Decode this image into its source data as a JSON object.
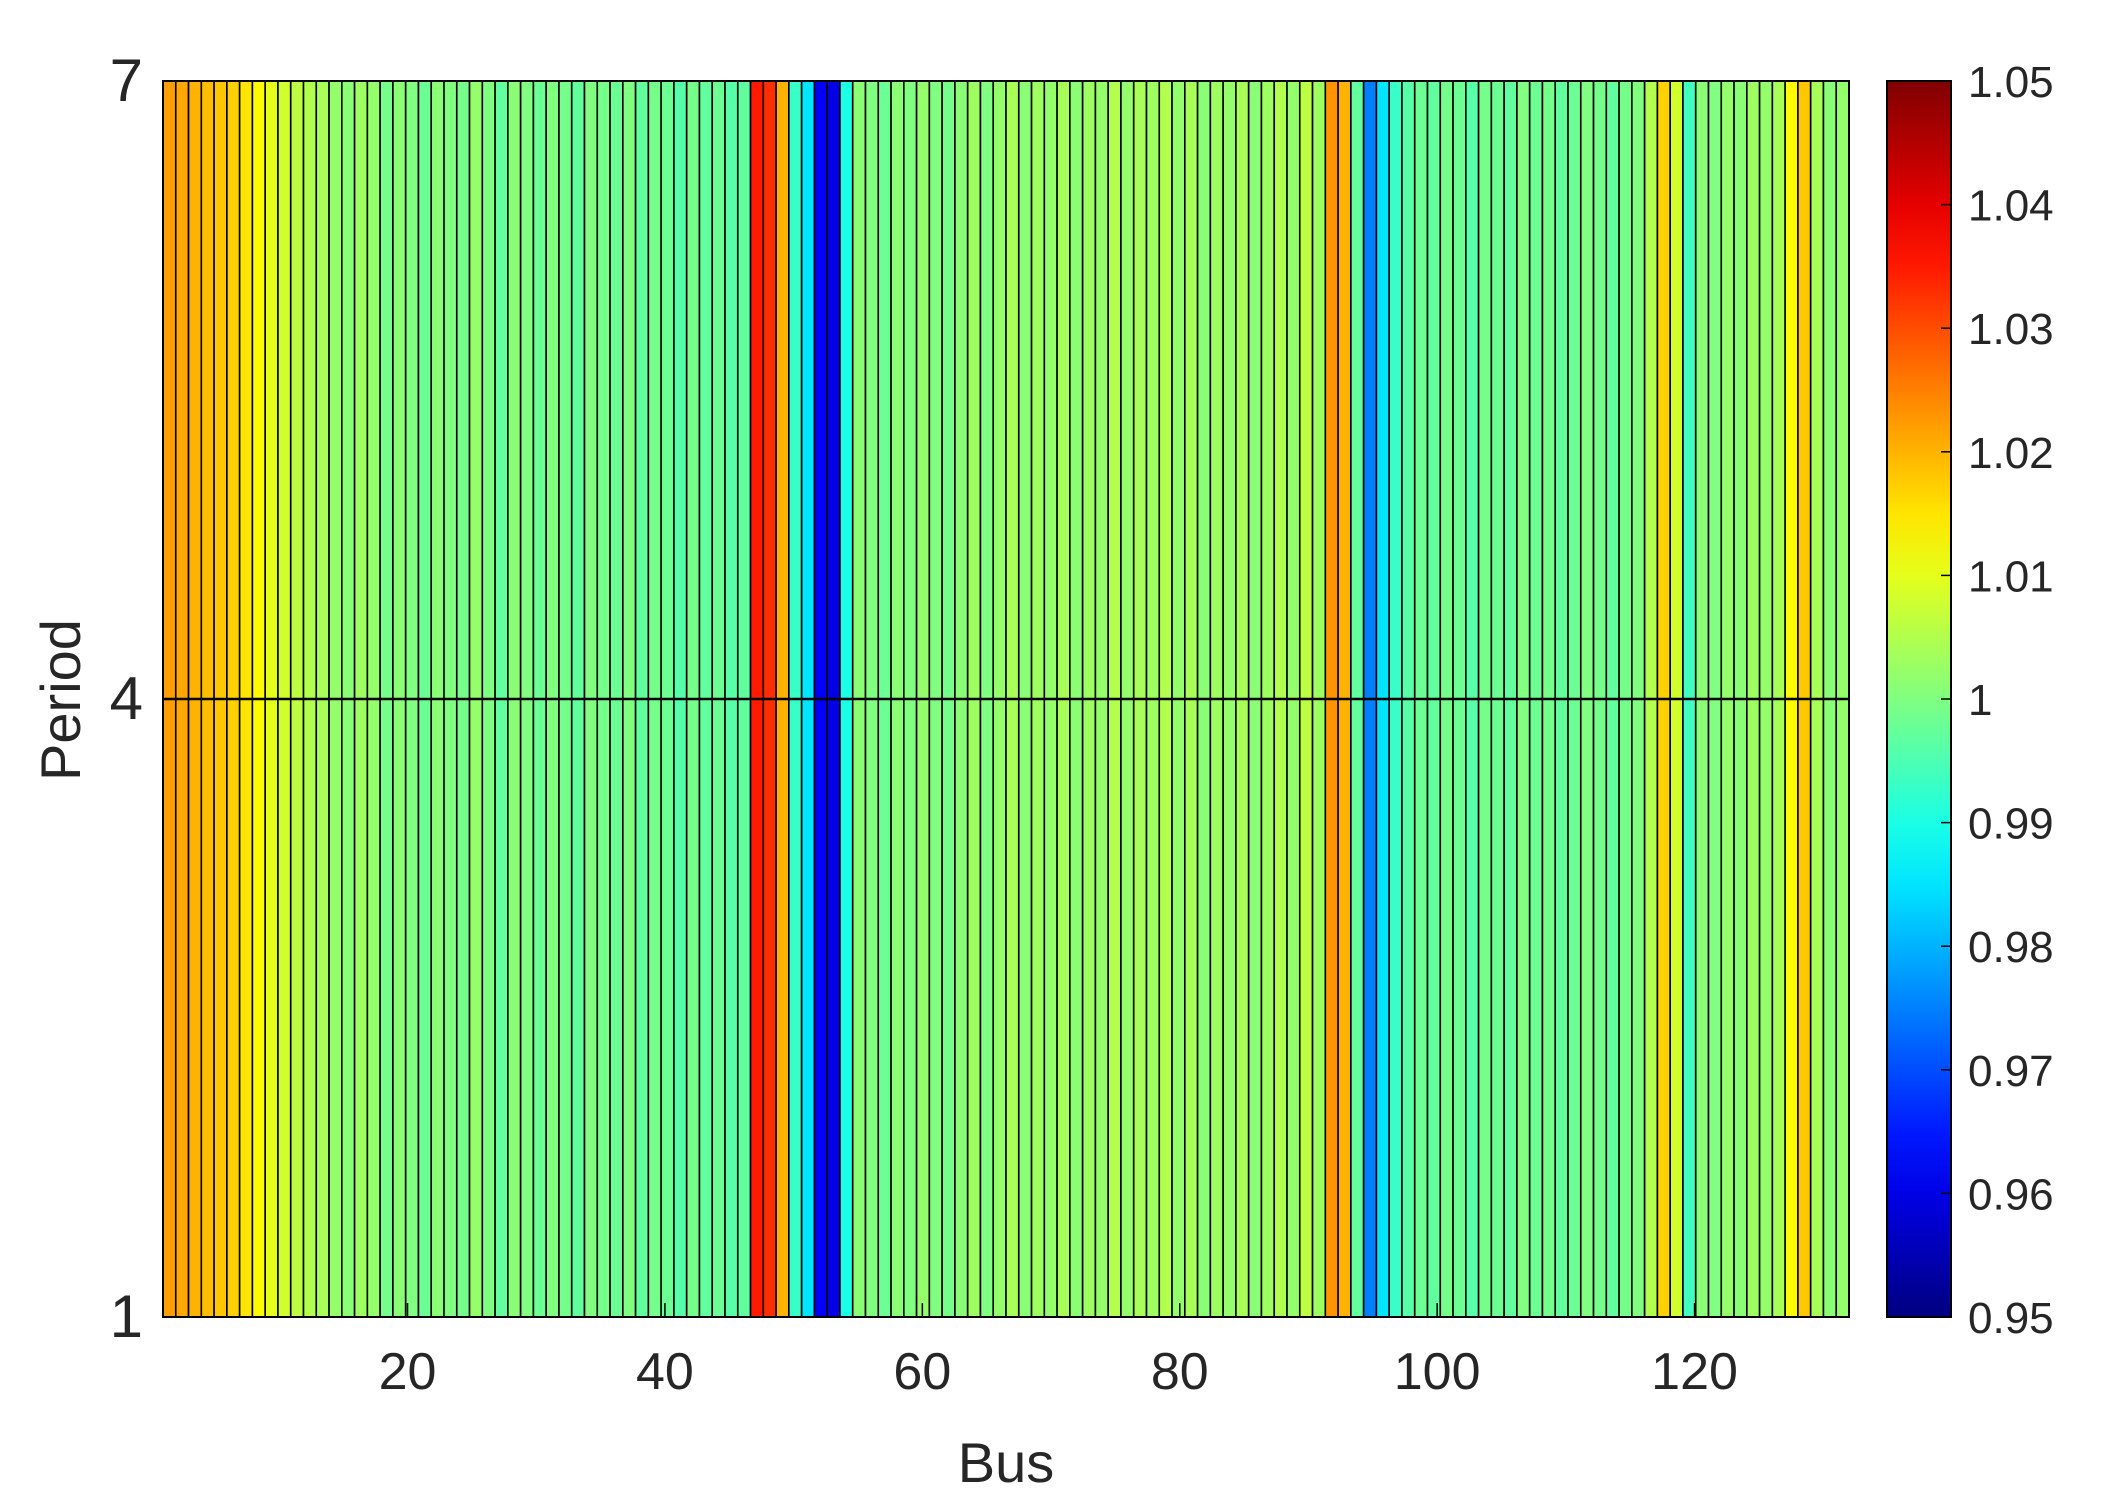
{
  "chart_data": {
    "type": "heatmap",
    "title": "",
    "xlabel": "Bus",
    "ylabel": "Period",
    "x_ticks": [
      20,
      40,
      60,
      80,
      100,
      120
    ],
    "x_tick_labels": [
      "20",
      "40",
      "60",
      "80",
      "100",
      "120"
    ],
    "y_ticks": [
      1,
      4,
      7
    ],
    "y_tick_labels": [
      "1",
      "4",
      "7"
    ],
    "xlim": [
      1,
      132
    ],
    "ylim": [
      1,
      7
    ],
    "periods": [
      1,
      4,
      7
    ],
    "n_buses": 132,
    "colormap": "jet",
    "colorbar": {
      "min": 0.95,
      "max": 1.05,
      "ticks": [
        0.95,
        0.96,
        0.97,
        0.98,
        0.99,
        1,
        1.01,
        1.02,
        1.03,
        1.04,
        1.05
      ],
      "tick_labels": [
        "0.95",
        "0.96",
        "0.97",
        "0.98",
        "0.99",
        "1",
        "1.01",
        "1.02",
        "1.03",
        "1.04",
        "1.05"
      ]
    },
    "bus_voltages": [
      1.022,
      1.021,
      1.02,
      1.019,
      1.018,
      1.017,
      1.015,
      1.013,
      1.01,
      1.008,
      1.006,
      1.005,
      1.004,
      1.002,
      1.001,
      1.003,
      1.002,
      0.999,
      1.001,
      1.0,
      0.998,
      1.001,
      1.0,
      0.999,
      1.002,
      1.0,
      0.997,
      1.001,
      1.0,
      0.998,
      1.0,
      0.999,
      0.997,
      1.0,
      0.999,
      0.998,
      1.0,
      0.997,
      0.999,
      0.998,
      0.996,
      0.999,
      0.997,
      0.998,
      0.996,
      0.997,
      1.035,
      1.033,
      1.02,
      0.993,
      0.985,
      0.962,
      0.96,
      0.99,
      1.001,
      1.0,
      0.998,
      1.001,
      1.0,
      1.002,
      1.0,
      0.999,
      1.001,
      1.003,
      1.0,
      1.002,
      1.004,
      1.001,
      1.003,
      1.002,
      1.004,
      1.001,
      1.003,
      1.002,
      1.005,
      1.002,
      1.004,
      1.003,
      1.005,
      1.002,
      1.004,
      1.001,
      1.003,
      1.002,
      1.004,
      1.001,
      1.003,
      1.005,
      1.002,
      1.006,
      1.003,
      1.023,
      1.02,
      0.997,
      0.975,
      0.985,
      0.993,
      0.996,
      0.998,
      0.997,
      0.999,
      0.998,
      0.996,
      0.999,
      0.998,
      0.997,
      1.0,
      0.998,
      0.999,
      0.997,
      0.998,
      1.0,
      0.999,
      0.997,
      0.999,
      1.0,
      1.005,
      1.017,
      1.008,
      0.994,
      1.001,
      1.0,
      1.002,
      1.001,
      1.003,
      1.002,
      1.004,
      1.013,
      1.018,
      1.004,
      1.001,
      1.002
    ]
  }
}
